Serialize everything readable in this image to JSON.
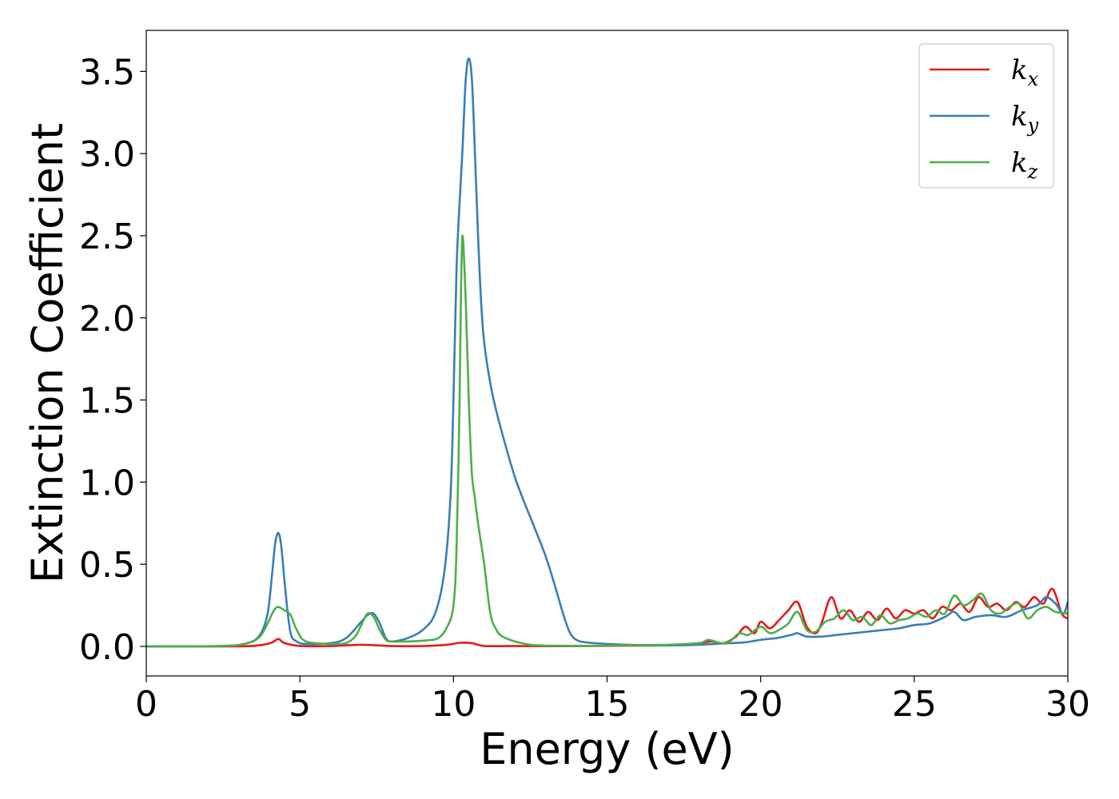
{
  "chart_data": {
    "type": "line",
    "title": "",
    "xlabel": "Energy (eV)",
    "ylabel": "Extinction Coefficient",
    "xlim": [
      0,
      30
    ],
    "ylim": [
      -0.18,
      3.75
    ],
    "xticks": [
      0,
      5,
      10,
      15,
      20,
      25,
      30
    ],
    "xtick_labels": [
      "0",
      "5",
      "10",
      "15",
      "20",
      "25",
      "30"
    ],
    "yticks": [
      0.0,
      0.5,
      1.0,
      1.5,
      2.0,
      2.5,
      3.0,
      3.5
    ],
    "ytick_labels": [
      "0.0",
      "0.5",
      "1.0",
      "1.5",
      "2.0",
      "2.5",
      "3.0",
      "3.5"
    ],
    "grid": false,
    "legend_position": "top-right",
    "series": [
      {
        "name": "k_x",
        "legend_main": "k",
        "legend_sub": "x",
        "color": "#e41a1c",
        "x": [
          0,
          3.0,
          3.8,
          4.1,
          4.3,
          4.5,
          5.0,
          6.0,
          7.0,
          8.0,
          9.0,
          9.8,
          10.2,
          10.6,
          11.0,
          12.0,
          14.0,
          16.0,
          17.0,
          18.0,
          18.4,
          18.8,
          19.2,
          19.5,
          19.8,
          20.0,
          20.3,
          20.6,
          20.9,
          21.2,
          21.5,
          21.8,
          22.0,
          22.3,
          22.6,
          22.9,
          23.2,
          23.5,
          23.8,
          24.1,
          24.4,
          24.7,
          25.0,
          25.3,
          25.6,
          25.9,
          26.2,
          26.5,
          26.8,
          27.1,
          27.4,
          27.7,
          28.0,
          28.3,
          28.6,
          28.9,
          29.2,
          29.5,
          29.8,
          30.0
        ],
        "y": [
          0,
          0.0,
          0.01,
          0.025,
          0.045,
          0.02,
          0.003,
          0.002,
          0.01,
          0.002,
          0.002,
          0.01,
          0.022,
          0.02,
          0.003,
          0.002,
          0.002,
          0.005,
          0.008,
          0.02,
          0.03,
          0.02,
          0.06,
          0.12,
          0.08,
          0.15,
          0.11,
          0.16,
          0.22,
          0.27,
          0.12,
          0.08,
          0.15,
          0.3,
          0.17,
          0.22,
          0.15,
          0.21,
          0.16,
          0.23,
          0.17,
          0.22,
          0.2,
          0.22,
          0.17,
          0.24,
          0.22,
          0.26,
          0.21,
          0.3,
          0.24,
          0.26,
          0.22,
          0.27,
          0.24,
          0.3,
          0.26,
          0.35,
          0.2,
          0.17
        ]
      },
      {
        "name": "k_y",
        "legend_main": "k",
        "legend_sub": "y",
        "color": "#377eb8",
        "x": [
          0,
          2.5,
          3.3,
          3.7,
          3.95,
          4.1,
          4.2,
          4.3,
          4.4,
          4.55,
          4.7,
          4.9,
          5.2,
          6.0,
          6.5,
          7.0,
          7.2,
          7.4,
          7.6,
          7.8,
          8.0,
          8.5,
          9.0,
          9.4,
          9.7,
          9.9,
          10.0,
          10.1,
          10.2,
          10.3,
          10.4,
          10.5,
          10.6,
          10.7,
          10.8,
          10.9,
          11.0,
          11.2,
          11.4,
          11.7,
          12.0,
          12.3,
          12.6,
          13.0,
          13.3,
          13.6,
          13.8,
          14.0,
          14.3,
          15.0,
          16.0,
          17.0,
          18.0,
          19.0,
          19.5,
          20.0,
          20.5,
          21.0,
          21.2,
          21.5,
          22.0,
          22.5,
          23.0,
          23.5,
          24.0,
          24.5,
          25.0,
          25.5,
          26.0,
          26.3,
          26.6,
          27.0,
          27.5,
          28.0,
          28.5,
          29.0,
          29.3,
          29.6,
          29.85,
          30.0
        ],
        "y": [
          0,
          0.003,
          0.02,
          0.07,
          0.2,
          0.45,
          0.63,
          0.69,
          0.6,
          0.3,
          0.08,
          0.03,
          0.015,
          0.02,
          0.05,
          0.15,
          0.19,
          0.2,
          0.14,
          0.05,
          0.03,
          0.05,
          0.1,
          0.2,
          0.45,
          0.9,
          1.5,
          2.3,
          2.7,
          3.05,
          3.45,
          3.58,
          3.45,
          3.0,
          2.5,
          2.1,
          1.85,
          1.6,
          1.43,
          1.22,
          1.03,
          0.88,
          0.74,
          0.55,
          0.37,
          0.18,
          0.08,
          0.04,
          0.025,
          0.015,
          0.008,
          0.006,
          0.01,
          0.02,
          0.025,
          0.04,
          0.05,
          0.07,
          0.08,
          0.06,
          0.06,
          0.07,
          0.08,
          0.09,
          0.1,
          0.11,
          0.13,
          0.14,
          0.18,
          0.21,
          0.16,
          0.18,
          0.19,
          0.18,
          0.22,
          0.25,
          0.3,
          0.26,
          0.2,
          0.27
        ]
      },
      {
        "name": "k_z",
        "legend_main": "k",
        "legend_sub": "z",
        "color": "#4daf4a",
        "x": [
          0,
          2.5,
          3.3,
          3.7,
          3.95,
          4.1,
          4.2,
          4.3,
          4.5,
          4.7,
          4.9,
          5.2,
          6.0,
          6.5,
          6.8,
          7.0,
          7.2,
          7.4,
          7.6,
          7.8,
          8.0,
          8.5,
          9.0,
          9.5,
          9.8,
          10.0,
          10.1,
          10.2,
          10.25,
          10.3,
          10.4,
          10.5,
          10.6,
          10.7,
          10.8,
          11.0,
          11.2,
          11.4,
          11.6,
          12.0,
          12.5,
          13.0,
          14.0,
          15.0,
          16.0,
          17.0,
          18.0,
          18.3,
          18.7,
          19.0,
          19.3,
          19.6,
          20.0,
          20.3,
          20.6,
          20.9,
          21.2,
          21.5,
          21.8,
          22.1,
          22.4,
          22.7,
          23.0,
          23.3,
          23.6,
          23.9,
          24.2,
          24.5,
          24.8,
          25.1,
          25.4,
          25.7,
          26.0,
          26.3,
          26.6,
          26.9,
          27.2,
          27.5,
          27.8,
          28.1,
          28.4,
          28.7,
          29.0,
          29.3,
          29.6,
          30.0
        ],
        "y": [
          0,
          0.003,
          0.02,
          0.06,
          0.14,
          0.2,
          0.23,
          0.24,
          0.22,
          0.19,
          0.1,
          0.03,
          0.015,
          0.02,
          0.06,
          0.13,
          0.2,
          0.18,
          0.1,
          0.04,
          0.03,
          0.03,
          0.035,
          0.05,
          0.12,
          0.25,
          0.6,
          1.5,
          2.2,
          2.5,
          2.1,
          1.5,
          1.05,
          0.9,
          0.75,
          0.5,
          0.2,
          0.1,
          0.06,
          0.03,
          0.01,
          0.005,
          0.003,
          0.005,
          0.008,
          0.01,
          0.02,
          0.04,
          0.02,
          0.03,
          0.08,
          0.07,
          0.12,
          0.08,
          0.1,
          0.14,
          0.21,
          0.1,
          0.09,
          0.15,
          0.17,
          0.22,
          0.16,
          0.18,
          0.13,
          0.19,
          0.14,
          0.16,
          0.17,
          0.2,
          0.18,
          0.22,
          0.2,
          0.31,
          0.25,
          0.28,
          0.32,
          0.22,
          0.2,
          0.24,
          0.26,
          0.17,
          0.22,
          0.24,
          0.21,
          0.2
        ]
      }
    ]
  }
}
